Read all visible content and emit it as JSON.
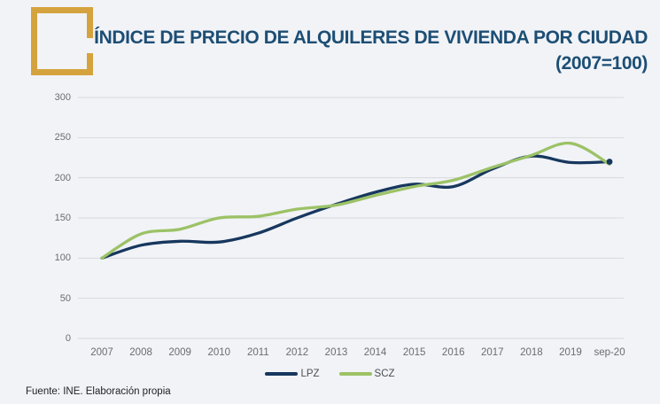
{
  "header": {
    "title_line1": "ÍNDICE DE PRECIO DE ALQUILERES DE VIVIENDA POR CIUDAD",
    "title_line2": "(2007=100)"
  },
  "footer": {
    "source": "Fuente: INE. Elaboración propia"
  },
  "colors": {
    "background": "#F1F3F7",
    "title_navy": "#1D4E74",
    "accent_gold": "#D5A33E",
    "gridline": "#D6D8DB",
    "tick_text": "#6a6c6e",
    "lpz_navy": "#17375E",
    "scz_green": "#9CC266"
  },
  "chart_data": {
    "type": "line",
    "title": "ÍNDICE DE PRECIO DE ALQUILERES DE VIVIENDA POR CIUDAD (2007=100)",
    "categories": [
      "2007",
      "2008",
      "2009",
      "2010",
      "2011",
      "2012",
      "2013",
      "2014",
      "2015",
      "2016",
      "2017",
      "2018",
      "2019",
      "sep-20"
    ],
    "series": [
      {
        "name": "LPZ",
        "color": "#17375E",
        "values": [
          100,
          116,
          121,
          120,
          131,
          150,
          167,
          182,
          192,
          189,
          211,
          227,
          219,
          220
        ]
      },
      {
        "name": "SCZ",
        "color": "#9CC266",
        "values": [
          100,
          130,
          136,
          150,
          152,
          161,
          166,
          178,
          189,
          197,
          213,
          228,
          243,
          217
        ]
      }
    ],
    "ylim": [
      0,
      300
    ],
    "yticks": [
      0,
      50,
      100,
      150,
      200,
      250,
      300
    ],
    "grid": true,
    "legend_position": "bottom-center",
    "end_marker_series": "LPZ",
    "xlabel": "",
    "ylabel": ""
  }
}
